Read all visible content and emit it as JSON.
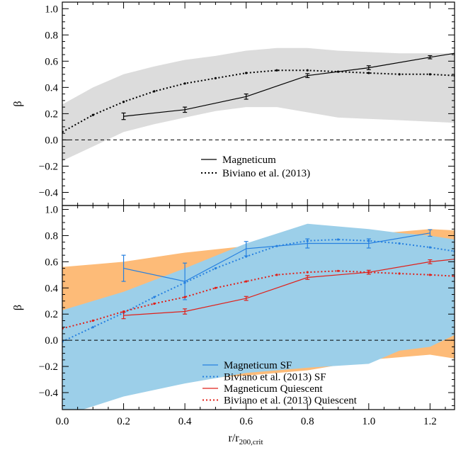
{
  "chart_data": [
    {
      "type": "line",
      "panel": "top",
      "title": "",
      "xlabel": "",
      "ylabel": "β",
      "xlim": [
        0.0,
        1.28
      ],
      "ylim": [
        -0.5,
        1.05
      ],
      "xticks": [
        0.0,
        0.2,
        0.4,
        0.6,
        0.8,
        1.0,
        1.2
      ],
      "yticks": [
        -0.4,
        -0.2,
        0.0,
        0.2,
        0.4,
        0.6,
        0.8,
        1.0
      ],
      "ytick_labels": [
        "−0.4",
        "−0.2",
        "0.0",
        "0.2",
        "0.4",
        "0.6",
        "0.8",
        "1.0"
      ],
      "zero_line": 0.0,
      "grid": false,
      "legend_position": "bottom-center",
      "bands": [
        {
          "color": "#dcdcdc",
          "x": [
            0.0,
            0.1,
            0.2,
            0.3,
            0.4,
            0.5,
            0.6,
            0.7,
            0.8,
            0.9,
            1.0,
            1.1,
            1.28
          ],
          "lower": [
            -0.16,
            -0.05,
            0.06,
            0.12,
            0.17,
            0.22,
            0.25,
            0.25,
            0.21,
            0.17,
            0.16,
            0.15,
            0.13
          ],
          "upper": [
            0.27,
            0.4,
            0.5,
            0.56,
            0.61,
            0.64,
            0.68,
            0.7,
            0.7,
            0.68,
            0.67,
            0.66,
            0.66
          ]
        }
      ],
      "series": [
        {
          "name": "Magneticum",
          "style": "solid",
          "color": "#000000",
          "x": [
            0.2,
            0.4,
            0.6,
            0.8,
            1.0,
            1.2,
            1.28
          ],
          "y": [
            0.18,
            0.23,
            0.33,
            0.49,
            0.55,
            0.63,
            0.66
          ],
          "err": [
            0.025,
            0.02,
            0.02,
            0.015,
            0.015,
            0.012,
            0
          ]
        },
        {
          "name": "Biviano et al. (2013)",
          "style": "dotted",
          "color": "#000000",
          "x": [
            0.0,
            0.1,
            0.2,
            0.3,
            0.4,
            0.5,
            0.6,
            0.7,
            0.8,
            0.9,
            1.0,
            1.1,
            1.2,
            1.28
          ],
          "y": [
            0.06,
            0.19,
            0.29,
            0.37,
            0.43,
            0.47,
            0.51,
            0.53,
            0.53,
            0.52,
            0.51,
            0.5,
            0.5,
            0.49
          ]
        }
      ]
    },
    {
      "type": "line",
      "panel": "bottom",
      "title": "",
      "xlabel": "r/r",
      "xlabel_sub": "200,crit",
      "ylabel": "β",
      "xlim": [
        0.0,
        1.28
      ],
      "ylim": [
        -0.53,
        1.03
      ],
      "xticks": [
        0.0,
        0.2,
        0.4,
        0.6,
        0.8,
        1.0,
        1.2
      ],
      "xtick_labels": [
        "0.0",
        "0.2",
        "0.4",
        "0.6",
        "0.8",
        "1.0",
        "1.2"
      ],
      "yticks": [
        -0.4,
        -0.2,
        0.0,
        0.2,
        0.4,
        0.6,
        0.8,
        1.0
      ],
      "ytick_labels": [
        "−0.4",
        "−0.2",
        "0.0",
        "0.2",
        "0.4",
        "0.6",
        "0.8",
        "1.0"
      ],
      "zero_line": 0.0,
      "grid": false,
      "legend_position": "bottom-right",
      "bands": [
        {
          "color": "#fdbb78",
          "x": [
            0.0,
            0.2,
            0.4,
            0.6,
            0.8,
            1.0,
            1.2,
            1.28
          ],
          "lower": [
            -0.41,
            -0.35,
            -0.3,
            -0.27,
            -0.23,
            -0.15,
            -0.11,
            -0.14
          ],
          "upper": [
            0.56,
            0.6,
            0.67,
            0.72,
            0.77,
            0.81,
            0.85,
            0.84
          ]
        },
        {
          "color": "#9ccfe9",
          "x": [
            0.0,
            0.2,
            0.4,
            0.6,
            0.8,
            1.0,
            1.1,
            1.2,
            1.28
          ],
          "lower": [
            -0.58,
            -0.43,
            -0.33,
            -0.25,
            -0.21,
            -0.18,
            -0.08,
            -0.05,
            0.04
          ],
          "upper": [
            0.23,
            0.37,
            0.55,
            0.74,
            0.89,
            0.85,
            0.82,
            0.8,
            0.77
          ]
        }
      ],
      "series": [
        {
          "name": "Magneticum SF",
          "style": "solid",
          "color": "#2680e0",
          "x": [
            0.2,
            0.4,
            0.6,
            0.8,
            1.0,
            1.2
          ],
          "y": [
            0.55,
            0.45,
            0.7,
            0.74,
            0.74,
            0.82
          ],
          "err": [
            0.1,
            0.14,
            0.055,
            0.035,
            0.035,
            0.025
          ]
        },
        {
          "name": "Biviano et al. (2013) SF",
          "style": "dotted",
          "color": "#2680e0",
          "x": [
            0.0,
            0.1,
            0.2,
            0.3,
            0.4,
            0.5,
            0.6,
            0.7,
            0.8,
            0.9,
            1.0,
            1.1,
            1.2,
            1.28
          ],
          "y": [
            -0.01,
            0.1,
            0.21,
            0.33,
            0.44,
            0.55,
            0.64,
            0.72,
            0.76,
            0.77,
            0.76,
            0.74,
            0.71,
            0.68
          ]
        },
        {
          "name": "Magneticum Quiescent",
          "style": "solid",
          "color": "#e0201a",
          "x": [
            0.2,
            0.4,
            0.6,
            0.8,
            1.0,
            1.2,
            1.28
          ],
          "y": [
            0.19,
            0.22,
            0.32,
            0.48,
            0.52,
            0.6,
            0.62
          ],
          "err": [
            0.025,
            0.02,
            0.015,
            0.015,
            0.015,
            0.015,
            0
          ]
        },
        {
          "name": "Biviano et al. (2013) Quiescent",
          "style": "dotted",
          "color": "#e0201a",
          "x": [
            0.0,
            0.1,
            0.2,
            0.3,
            0.4,
            0.5,
            0.6,
            0.7,
            0.8,
            0.9,
            1.0,
            1.1,
            1.2,
            1.28
          ],
          "y": [
            0.09,
            0.15,
            0.22,
            0.28,
            0.33,
            0.4,
            0.45,
            0.5,
            0.52,
            0.53,
            0.52,
            0.51,
            0.5,
            0.49
          ]
        }
      ]
    }
  ]
}
